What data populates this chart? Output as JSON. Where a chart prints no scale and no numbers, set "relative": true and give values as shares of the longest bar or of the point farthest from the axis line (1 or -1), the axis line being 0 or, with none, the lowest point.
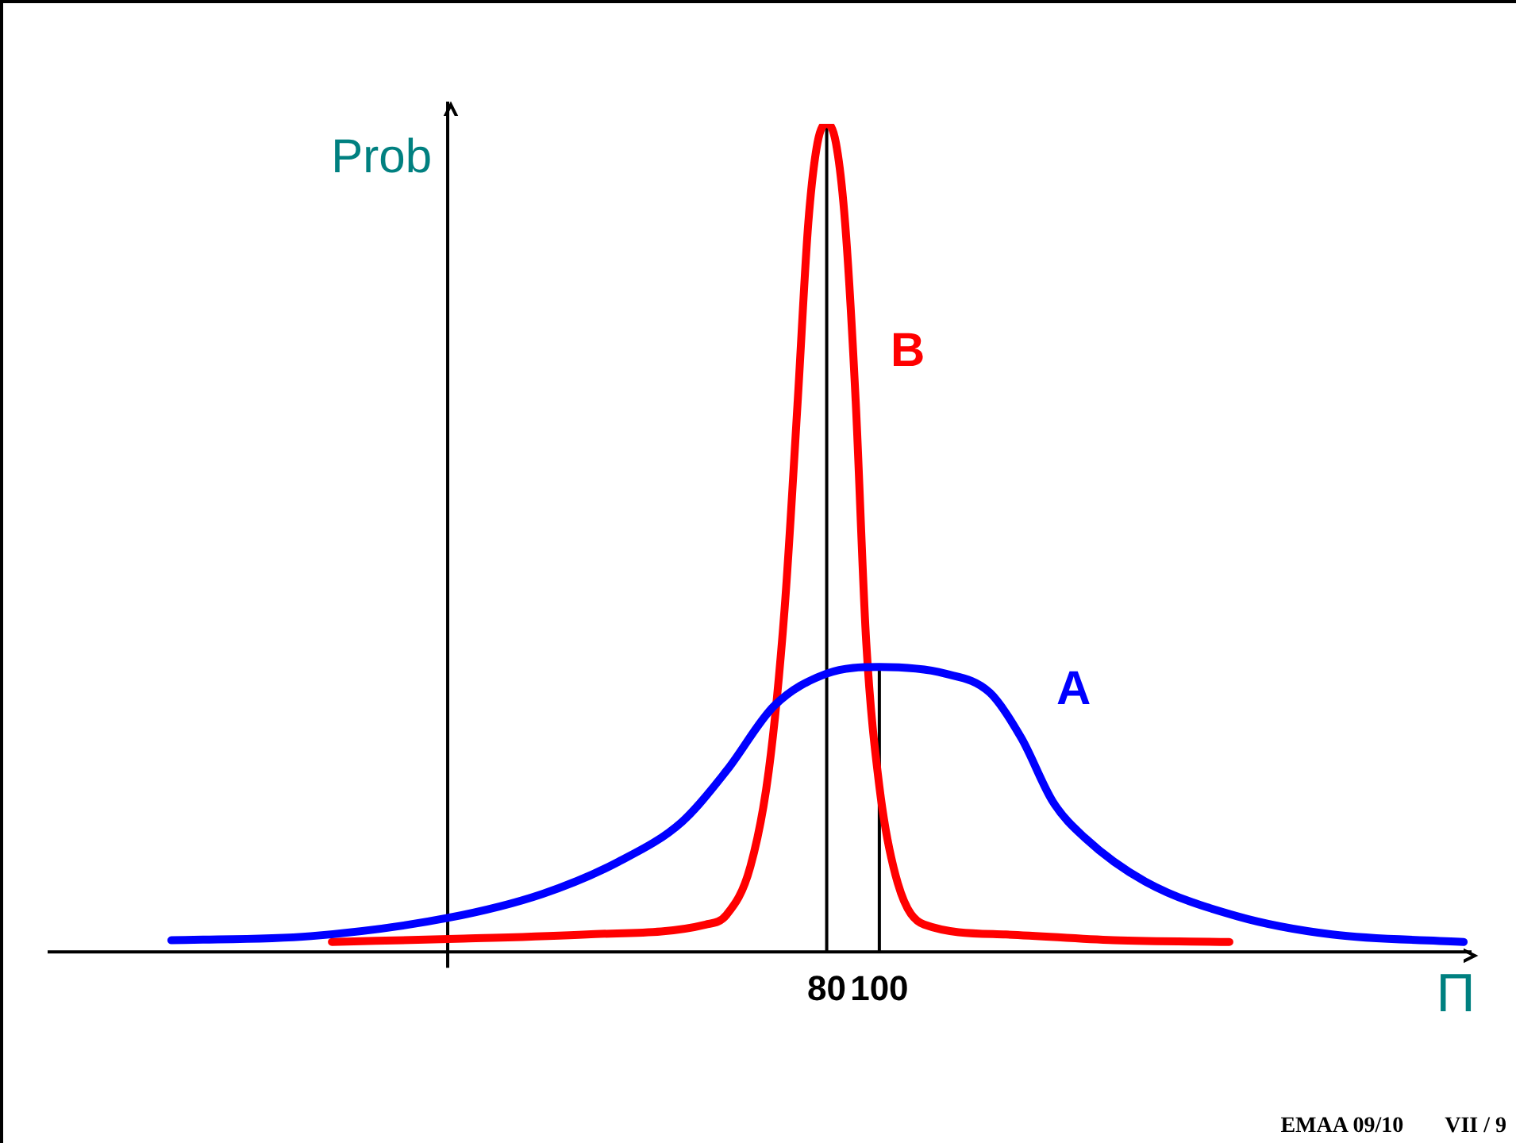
{
  "chart_data": {
    "type": "line",
    "relative": true,
    "xlabel": "Π",
    "xlim": [
      -216,
      325
    ],
    "xticks": [
      80,
      100
    ],
    "grid": false,
    "legend": false,
    "marker": "none",
    "line_style": "solid",
    "series": [
      {
        "name": "A",
        "color": "#0000ff",
        "x": [
          -169,
          -116,
          -64,
          -28,
          1,
          25,
          42,
          60,
          80,
          100,
          125,
          142,
          154,
          166,
          178,
          201,
          236,
          272,
          322
        ],
        "values": [
          0.014,
          0.019,
          0.041,
          0.07,
          0.109,
          0.157,
          0.219,
          0.297,
          0.336,
          0.344,
          0.336,
          0.313,
          0.258,
          0.181,
          0.138,
          0.085,
          0.043,
          0.021,
          0.012
        ]
      },
      {
        "name": "B",
        "color": "#ff0000",
        "x": [
          -108,
          -58,
          -11,
          34,
          42,
          51,
          58,
          64,
          69,
          73,
          76.5,
          80,
          83.5,
          87,
          91,
          95,
          100,
          107,
          117,
          148,
          189,
          233
        ],
        "values": [
          0.012,
          0.016,
          0.021,
          0.033,
          0.045,
          0.103,
          0.219,
          0.414,
          0.666,
          0.88,
          0.977,
          1,
          0.977,
          0.88,
          0.666,
          0.375,
          0.2,
          0.083,
          0.033,
          0.021,
          0.014,
          0.012
        ]
      }
    ],
    "ref_lines": [
      {
        "axis": "x",
        "value": -64,
        "label": "Prob"
      },
      {
        "axis": "x",
        "value": 80
      },
      {
        "axis": "x",
        "value": 100
      }
    ],
    "annotations": [
      "EMAA 09/10",
      "VII / 9"
    ]
  }
}
